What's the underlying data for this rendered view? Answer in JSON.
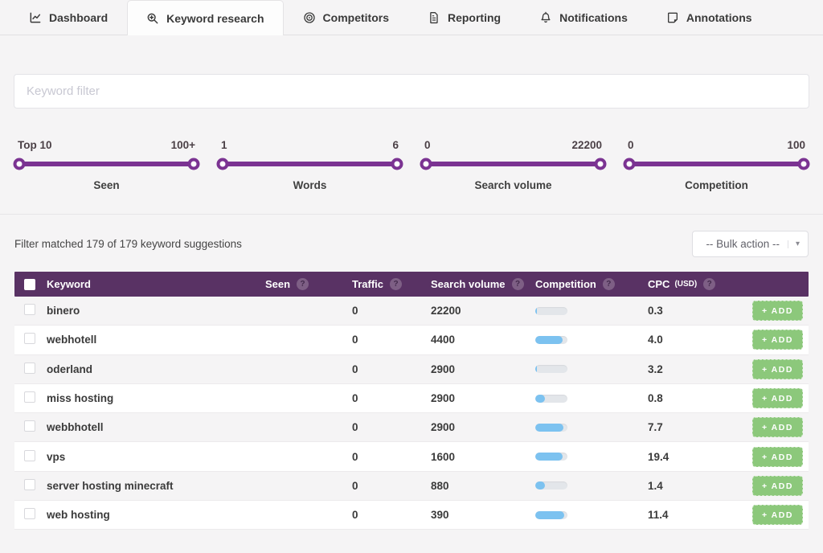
{
  "nav": {
    "tabs": [
      {
        "id": "dashboard",
        "label": "Dashboard",
        "icon": "chart-line-icon",
        "active": false
      },
      {
        "id": "keyword-research",
        "label": "Keyword research",
        "icon": "search-plus-icon",
        "active": true
      },
      {
        "id": "competitors",
        "label": "Competitors",
        "icon": "target-icon",
        "active": false
      },
      {
        "id": "reporting",
        "label": "Reporting",
        "icon": "document-icon",
        "active": false
      },
      {
        "id": "notifications",
        "label": "Notifications",
        "icon": "bell-icon",
        "active": false
      },
      {
        "id": "annotations",
        "label": "Annotations",
        "icon": "note-icon",
        "active": false
      }
    ]
  },
  "filter": {
    "placeholder": "Keyword filter"
  },
  "sliders": [
    {
      "id": "seen",
      "min_label": "Top 10",
      "max_label": "100+",
      "name": "Seen"
    },
    {
      "id": "words",
      "min_label": "1",
      "max_label": "6",
      "name": "Words"
    },
    {
      "id": "search-volume",
      "min_label": "0",
      "max_label": "22200",
      "name": "Search volume"
    },
    {
      "id": "competition",
      "min_label": "0",
      "max_label": "100",
      "name": "Competition"
    }
  ],
  "results": {
    "summary": "Filter matched 179 of 179 keyword suggestions",
    "bulk_action_label": "-- Bulk action --"
  },
  "table": {
    "columns": [
      {
        "label": "Keyword",
        "help": false
      },
      {
        "label": "Seen",
        "help": true
      },
      {
        "label": "Traffic",
        "help": true
      },
      {
        "label": "Search volume",
        "help": true
      },
      {
        "label": "Competition",
        "help": true
      },
      {
        "label": "CPC",
        "sub": "(USD)",
        "help": true
      }
    ],
    "add_button_label": "+ ADD",
    "rows": [
      {
        "keyword": "binero",
        "seen": "",
        "traffic": "0",
        "search_volume": "22200",
        "competition_pct": 6,
        "cpc": "0.3"
      },
      {
        "keyword": "webhotell",
        "seen": "",
        "traffic": "0",
        "search_volume": "4400",
        "competition_pct": 85,
        "cpc": "4.0"
      },
      {
        "keyword": "oderland",
        "seen": "",
        "traffic": "0",
        "search_volume": "2900",
        "competition_pct": 6,
        "cpc": "3.2"
      },
      {
        "keyword": "miss hosting",
        "seen": "",
        "traffic": "0",
        "search_volume": "2900",
        "competition_pct": 30,
        "cpc": "0.8"
      },
      {
        "keyword": "webbhotell",
        "seen": "",
        "traffic": "0",
        "search_volume": "2900",
        "competition_pct": 88,
        "cpc": "7.7"
      },
      {
        "keyword": "vps",
        "seen": "",
        "traffic": "0",
        "search_volume": "1600",
        "competition_pct": 85,
        "cpc": "19.4"
      },
      {
        "keyword": "server hosting minecraft",
        "seen": "",
        "traffic": "0",
        "search_volume": "880",
        "competition_pct": 30,
        "cpc": "1.4"
      },
      {
        "keyword": "web hosting",
        "seen": "",
        "traffic": "0",
        "search_volume": "390",
        "competition_pct": 90,
        "cpc": "11.4"
      }
    ]
  },
  "colors": {
    "accent_purple": "#7b3392",
    "table_header_purple": "#593264",
    "add_green": "#8cc87b",
    "bar_blue": "#7cc2f0"
  }
}
